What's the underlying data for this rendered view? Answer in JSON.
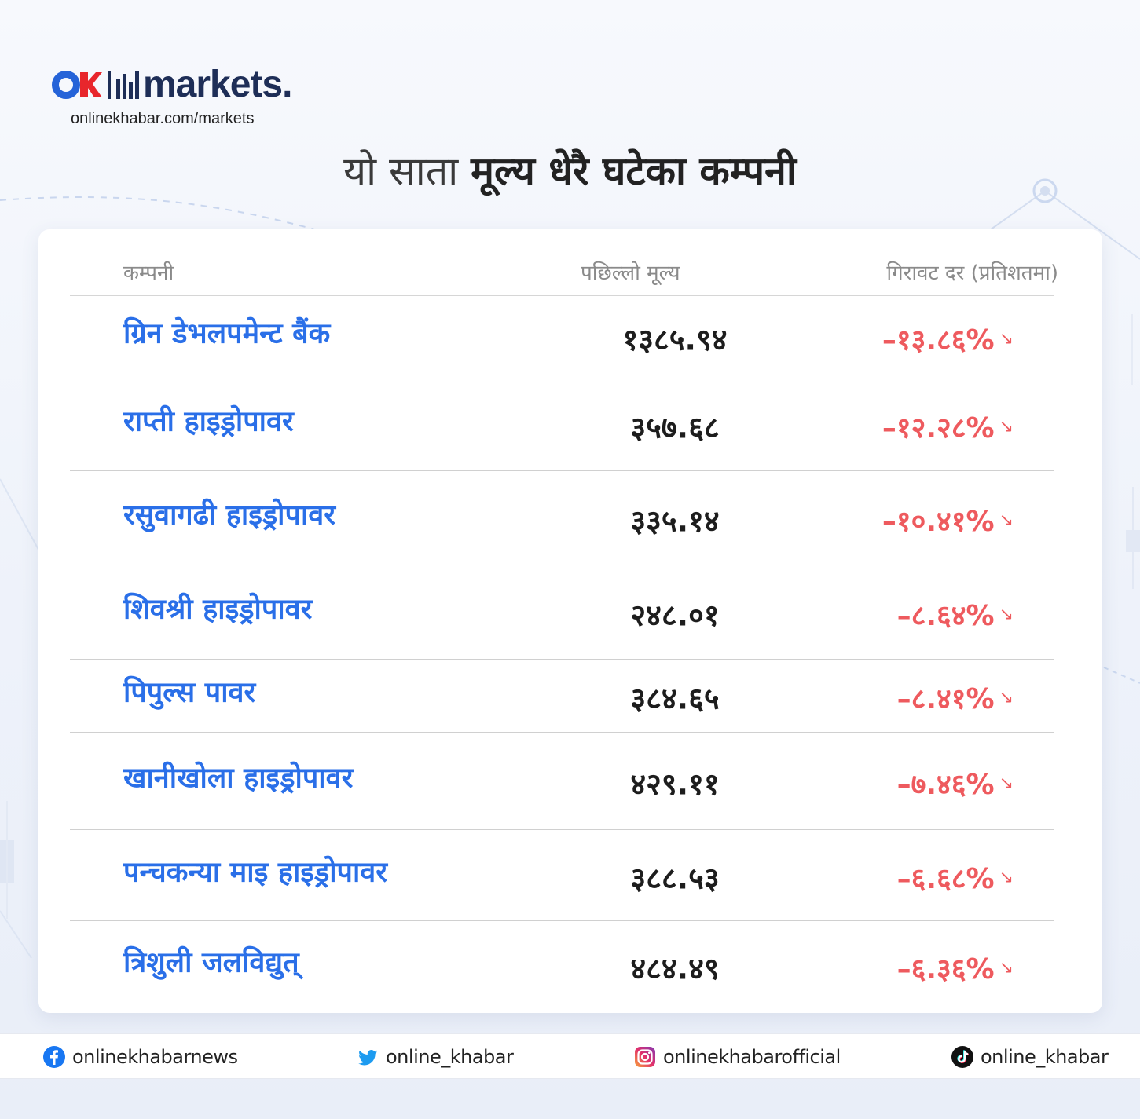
{
  "brand": {
    "url": "onlinekhabar.com/markets",
    "logo_word": "markets."
  },
  "title": {
    "light": "यो साता",
    "bold": "मूल्य धेरै घटेका कम्पनी"
  },
  "table": {
    "headers": {
      "company": "कम्पनी",
      "price": "पछिल्लो मूल्य",
      "drop": "गिरावट दर (प्रतिशतमा)"
    },
    "rows": [
      {
        "company": "ग्रिन डेभलपमेन्ट बैंक",
        "price": "१३८५.९४",
        "drop": "–१३.८६%"
      },
      {
        "company": "राप्ती हाइड्रोपावर",
        "price": "३५७.६८",
        "drop": "–१२.२८%"
      },
      {
        "company": "रसुवागढी हाइड्रोपावर",
        "price": "३३५.१४",
        "drop": "–१०.४१%"
      },
      {
        "company": "शिवश्री हाइड्रोपावर",
        "price": "२४८.०१",
        "drop": "–८.६४%"
      },
      {
        "company": "पिपुल्स पावर",
        "price": "३८४.६५",
        "drop": "–८.४१%"
      },
      {
        "company": "खानीखोला हाइड्रोपावर",
        "price": "४२९.११",
        "drop": "–७.४६%"
      },
      {
        "company": "पन्चकन्या माइ हाइड्रोपावर",
        "price": "३८८.५३",
        "drop": "–६.६८%"
      },
      {
        "company": "त्रिशुली जलविद्युत्",
        "price": "४८४.४९",
        "drop": "–६.३६%"
      }
    ],
    "arrow": "↘",
    "colors": {
      "company": "#2a6fe8",
      "price": "#1d1d1d",
      "drop": "#ee5a5e"
    }
  },
  "footer": {
    "facebook": "onlinekhabarnews",
    "twitter": "online_khabar",
    "instagram": "onlinekhabarofficial",
    "tiktok": "online_khabar"
  },
  "icons": [
    "facebook-icon",
    "twitter-icon",
    "instagram-icon",
    "tiktok-icon"
  ]
}
